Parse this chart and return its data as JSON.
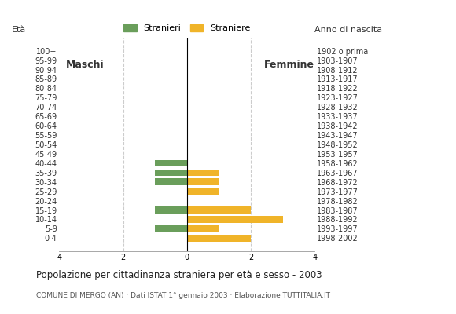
{
  "age_groups": [
    "100+",
    "95-99",
    "90-94",
    "85-89",
    "80-84",
    "75-79",
    "70-74",
    "65-69",
    "60-64",
    "55-59",
    "50-54",
    "45-49",
    "40-44",
    "35-39",
    "30-34",
    "25-29",
    "20-24",
    "15-19",
    "10-14",
    "5-9",
    "0-4"
  ],
  "birth_years": [
    "1902 o prima",
    "1903-1907",
    "1908-1912",
    "1913-1917",
    "1918-1922",
    "1923-1927",
    "1928-1932",
    "1933-1937",
    "1938-1942",
    "1943-1947",
    "1948-1952",
    "1953-1957",
    "1958-1962",
    "1963-1967",
    "1968-1972",
    "1973-1977",
    "1978-1982",
    "1983-1987",
    "1988-1992",
    "1993-1997",
    "1998-2002"
  ],
  "maschi": [
    0,
    0,
    0,
    0,
    0,
    0,
    0,
    0,
    0,
    0,
    0,
    0,
    1,
    1,
    1,
    0,
    0,
    1,
    0,
    1,
    0
  ],
  "femmine": [
    0,
    0,
    0,
    0,
    0,
    0,
    0,
    0,
    0,
    0,
    0,
    0,
    0,
    1,
    1,
    1,
    0,
    2,
    3,
    1,
    2
  ],
  "color_maschi": "#6a9e5b",
  "color_femmine": "#f0b429",
  "title": "Popolazione per cittadinanza straniera per età e sesso - 2003",
  "subtitle": "COMUNE DI MERGO (AN) · Dati ISTAT 1° gennaio 2003 · Elaborazione TUTTITALIA.IT",
  "legend_maschi": "Stranieri",
  "legend_femmine": "Straniere",
  "label_eta": "Età",
  "label_anno": "Anno di nascita",
  "label_maschi": "Maschi",
  "label_femmine": "Femmine",
  "xlim": 4,
  "background_color": "#ffffff",
  "grid_color": "#cccccc"
}
